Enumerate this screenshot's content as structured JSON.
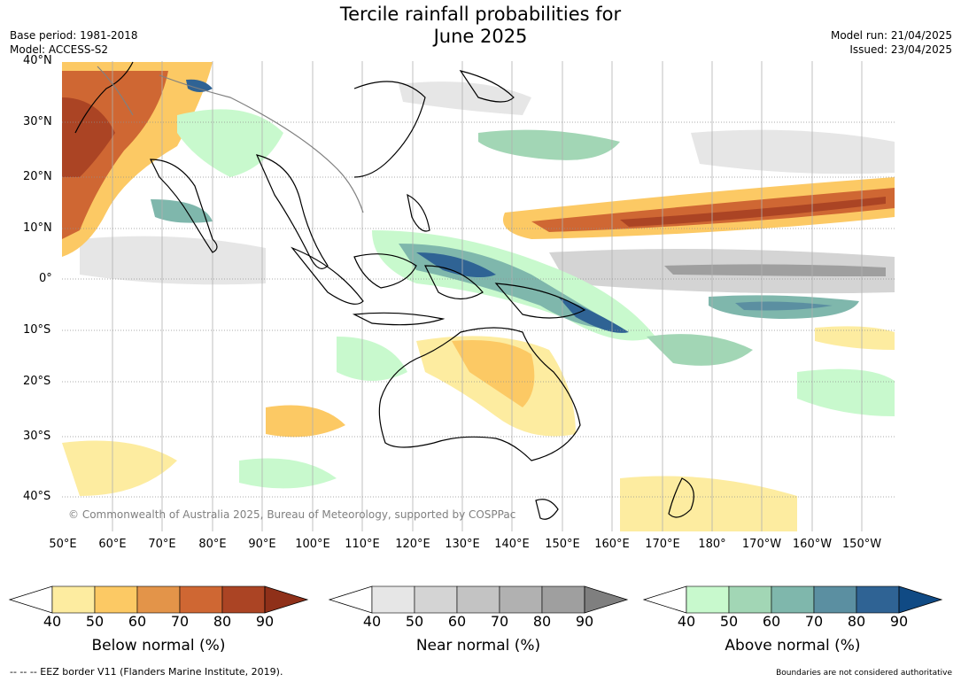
{
  "title_line1": "Tercile rainfall probabilities for",
  "title_line2": "June 2025",
  "base_period": "Base period: 1981-2018",
  "model": "Model: ACCESS-S2",
  "model_run": "Model run: 21/04/2025",
  "issued": "Issued: 23/04/2025",
  "copyright": "© Commonwealth of Australia 2025, Bureau of Meteorology, supported by COSPPac",
  "lat_labels": [
    "40°N",
    "30°N",
    "20°N",
    "10°N",
    "0°",
    "10°S",
    "20°S",
    "30°S",
    "40°S"
  ],
  "lon_labels": [
    "50°E",
    "60°E",
    "70°E",
    "80°E",
    "90°E",
    "100°E",
    "110°E",
    "120°E",
    "130°E",
    "140°E",
    "150°E",
    "160°E",
    "170°E",
    "180°",
    "170°W",
    "160°W",
    "150°W"
  ],
  "colorbars": [
    {
      "title": "Below normal (%)",
      "ticks": [
        "40",
        "50",
        "60",
        "70",
        "80",
        "90"
      ],
      "colors": [
        "#fdeca0",
        "#fcc964",
        "#e39449",
        "#cf6733",
        "#ab4424"
      ],
      "extend_color": "#8f3019"
    },
    {
      "title": "Near normal (%)",
      "ticks": [
        "40",
        "50",
        "60",
        "70",
        "80",
        "90"
      ],
      "colors": [
        "#e6e6e6",
        "#d4d4d4",
        "#c3c3c3",
        "#b1b1b1",
        "#9f9f9f"
      ],
      "extend_color": "#7f7f7f"
    },
    {
      "title": "Above normal (%)",
      "ticks": [
        "40",
        "50",
        "60",
        "70",
        "80",
        "90"
      ],
      "colors": [
        "#c8f9cd",
        "#a2d6b5",
        "#7fb7ac",
        "#5b8fa1",
        "#2f6394"
      ],
      "extend_color": "#104a84"
    }
  ],
  "footer_left": "-- -- -- EEZ border V11 (Flanders Marine Institute, 2019).",
  "footer_right": "Boundaries are not considered authoritative"
}
